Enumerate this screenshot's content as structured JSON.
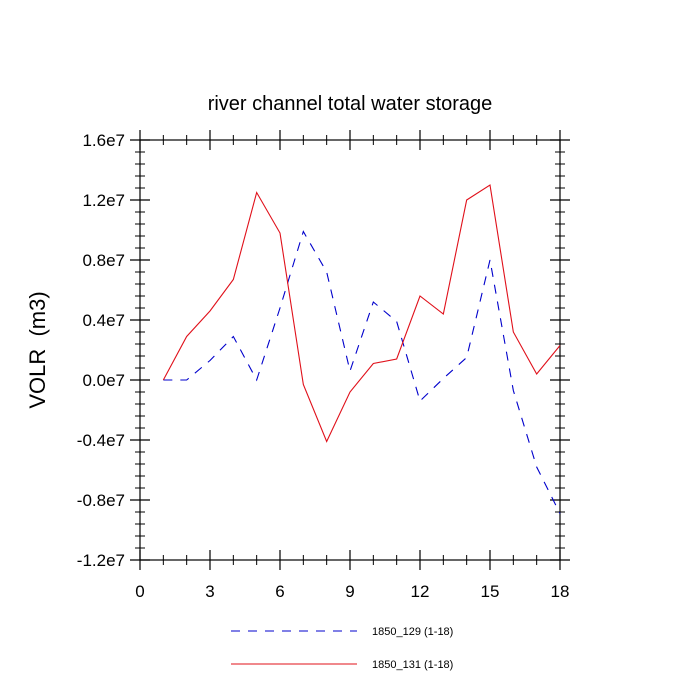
{
  "chart_data": {
    "type": "line",
    "title": "river channel total water storage",
    "xlabel": "",
    "ylabel": "VOLR  (m3)",
    "xlim": [
      0,
      18
    ],
    "ylim": [
      -12000000,
      16000000
    ],
    "x_ticks": [
      0,
      3,
      6,
      9,
      12,
      15,
      18
    ],
    "x_tick_labels": [
      "0",
      "3",
      "6",
      "9",
      "12",
      "15",
      "18"
    ],
    "y_ticks": [
      -12000000,
      -8000000,
      -4000000,
      0,
      4000000,
      8000000,
      12000000,
      16000000
    ],
    "y_tick_labels": [
      "-1.2e7",
      "-0.8e7",
      "-0.4e7",
      "0.0e7",
      "0.4e7",
      "0.8e7",
      "1.2e7",
      "1.6e7"
    ],
    "grid": false,
    "legend_position": "bottom",
    "x": [
      1,
      2,
      3,
      4,
      5,
      6,
      7,
      8,
      9,
      10,
      11,
      12,
      13,
      14,
      15,
      16,
      17,
      18
    ],
    "series": [
      {
        "name": "1850_129 (1-18)",
        "color": "#0000cc",
        "dash": "dashed",
        "values": [
          0,
          0,
          1300000,
          2900000,
          0,
          4800000,
          9900000,
          7200000,
          600000,
          5200000,
          3900000,
          -1400000,
          100000,
          1500000,
          8000000,
          -700000,
          -5800000,
          -8900000
        ]
      },
      {
        "name": "1850_131 (1-18)",
        "color": "#e0101a",
        "dash": "solid",
        "values": [
          0,
          2900000,
          4600000,
          6700000,
          12500000,
          9800000,
          -300000,
          -4100000,
          -800000,
          1100000,
          1400000,
          5600000,
          4400000,
          12000000,
          13000000,
          3200000,
          400000,
          2300000
        ]
      }
    ]
  }
}
